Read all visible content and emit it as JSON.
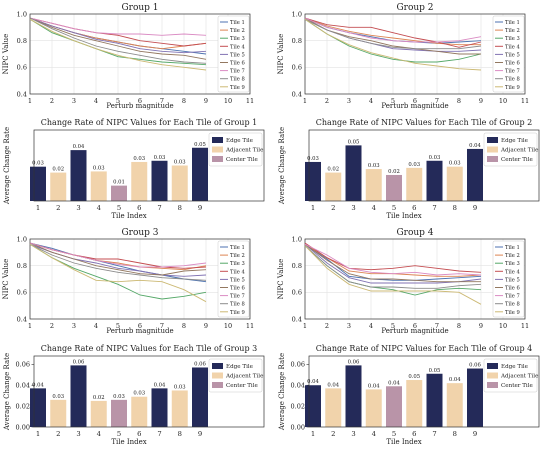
{
  "colors": {
    "tiles": [
      "#4c72b0",
      "#dd8452",
      "#55a868",
      "#c44e52",
      "#8172b3",
      "#937860",
      "#da8bc3",
      "#8c8c8c",
      "#ccb974"
    ],
    "edge": "#242a59",
    "adjacent": "#f1d3ab",
    "center": "#b994a8"
  },
  "chart_data": [
    {
      "type": "line",
      "title": "Group 1",
      "xlabel": "Perturb magnitude",
      "ylabel": "NIPC Value",
      "x": [
        1,
        2,
        3,
        4,
        5,
        6,
        7,
        8,
        9
      ],
      "xticks": [
        "1",
        "2",
        "3",
        "4",
        "5",
        "6",
        "7",
        "8",
        "9",
        "10",
        "11"
      ],
      "xlim": [
        1,
        11
      ],
      "ylim": [
        0.4,
        1.0
      ],
      "yticks": [
        "0.4",
        "0.6",
        "0.8",
        "1.0"
      ],
      "grid": true,
      "legend": "right",
      "series": [
        {
          "name": "Tile 1",
          "values": [
            0.97,
            0.91,
            0.86,
            0.82,
            0.79,
            0.76,
            0.74,
            0.72,
            0.7
          ]
        },
        {
          "name": "Tile 2",
          "values": [
            0.97,
            0.91,
            0.86,
            0.82,
            0.79,
            0.76,
            0.74,
            0.76,
            0.78
          ]
        },
        {
          "name": "Tile 3",
          "values": [
            0.96,
            0.86,
            0.8,
            0.74,
            0.68,
            0.66,
            0.64,
            0.63,
            0.62
          ]
        },
        {
          "name": "Tile 4",
          "values": [
            0.97,
            0.93,
            0.89,
            0.86,
            0.84,
            0.8,
            0.78,
            0.76,
            0.78
          ]
        },
        {
          "name": "Tile 5",
          "values": [
            0.97,
            0.91,
            0.86,
            0.81,
            0.78,
            0.74,
            0.72,
            0.71,
            0.72
          ]
        },
        {
          "name": "Tile 6",
          "values": [
            0.97,
            0.9,
            0.84,
            0.8,
            0.76,
            0.72,
            0.7,
            0.69,
            0.66
          ]
        },
        {
          "name": "Tile 7",
          "values": [
            0.97,
            0.93,
            0.89,
            0.86,
            0.85,
            0.85,
            0.84,
            0.85,
            0.84
          ]
        },
        {
          "name": "Tile 8",
          "values": [
            0.97,
            0.89,
            0.82,
            0.76,
            0.72,
            0.69,
            0.66,
            0.64,
            0.63
          ]
        },
        {
          "name": "Tile 9",
          "values": [
            0.96,
            0.87,
            0.8,
            0.74,
            0.69,
            0.65,
            0.62,
            0.6,
            0.58
          ]
        }
      ]
    },
    {
      "type": "line",
      "title": "Group 2",
      "xlabel": "Perturb magnitude",
      "ylabel": "NIPC Value",
      "x": [
        1,
        2,
        3,
        4,
        5,
        6,
        7,
        8,
        9
      ],
      "xticks": [
        "1",
        "2",
        "3",
        "4",
        "5",
        "6",
        "7",
        "8",
        "9",
        "10",
        "11"
      ],
      "xlim": [
        1,
        11
      ],
      "ylim": [
        0.4,
        1.0
      ],
      "yticks": [
        "0.4",
        "0.6",
        "0.8",
        "1.0"
      ],
      "grid": true,
      "legend": "right",
      "series": [
        {
          "name": "Tile 1",
          "values": [
            0.97,
            0.9,
            0.86,
            0.83,
            0.8,
            0.79,
            0.78,
            0.79,
            0.8
          ]
        },
        {
          "name": "Tile 2",
          "values": [
            0.97,
            0.91,
            0.87,
            0.84,
            0.82,
            0.8,
            0.78,
            0.77,
            0.77
          ]
        },
        {
          "name": "Tile 3",
          "values": [
            0.96,
            0.85,
            0.76,
            0.7,
            0.66,
            0.64,
            0.64,
            0.66,
            0.7
          ]
        },
        {
          "name": "Tile 4",
          "values": [
            0.97,
            0.92,
            0.9,
            0.9,
            0.86,
            0.82,
            0.79,
            0.75,
            0.79
          ]
        },
        {
          "name": "Tile 5",
          "values": [
            0.96,
            0.88,
            0.82,
            0.78,
            0.74,
            0.73,
            0.72,
            0.72,
            0.73
          ]
        },
        {
          "name": "Tile 6",
          "values": [
            0.97,
            0.88,
            0.83,
            0.8,
            0.76,
            0.74,
            0.72,
            0.7,
            0.7
          ]
        },
        {
          "name": "Tile 7",
          "values": [
            0.97,
            0.9,
            0.86,
            0.82,
            0.8,
            0.79,
            0.79,
            0.8,
            0.83
          ]
        },
        {
          "name": "Tile 8",
          "values": [
            0.96,
            0.88,
            0.82,
            0.78,
            0.75,
            0.74,
            0.74,
            0.74,
            0.76
          ]
        },
        {
          "name": "Tile 9",
          "values": [
            0.96,
            0.85,
            0.77,
            0.71,
            0.67,
            0.63,
            0.61,
            0.59,
            0.58
          ]
        }
      ]
    },
    {
      "type": "bar",
      "title": "Change Rate of NIPC Values for Each Tile of Group 1",
      "xlabel": "Tile Index",
      "ylabel": "Average Change Rate",
      "categories": [
        "1",
        "2",
        "3",
        "4",
        "5",
        "6",
        "7",
        "8",
        "9"
      ],
      "values": [
        0.03,
        0.02,
        0.04,
        0.03,
        0.01,
        0.03,
        0.03,
        0.03,
        0.05
      ],
      "bar_values": [
        0.029,
        0.024,
        0.043,
        0.025,
        0.013,
        0.033,
        0.034,
        0.03,
        0.045
      ],
      "roles": [
        "edge",
        "adjacent",
        "edge",
        "adjacent",
        "center",
        "adjacent",
        "edge",
        "adjacent",
        "edge"
      ],
      "ylim": [
        0,
        0.06
      ],
      "yticks": [],
      "legend": "top-right",
      "legend_labels": [
        "Edge Tile",
        "Adjacent Tile",
        "Center Tile"
      ]
    },
    {
      "type": "bar",
      "title": "Change Rate of NIPC Values for Each Tile of Group 2",
      "xlabel": "Tile Index",
      "ylabel": "Average Change Rate",
      "categories": [
        "1",
        "2",
        "3",
        "4",
        "5",
        "6",
        "7",
        "8",
        "9"
      ],
      "values": [
        0.03,
        0.02,
        0.05,
        0.03,
        0.02,
        0.03,
        0.03,
        0.03,
        0.04
      ],
      "bar_values": [
        0.033,
        0.024,
        0.047,
        0.027,
        0.022,
        0.028,
        0.034,
        0.029,
        0.044
      ],
      "roles": [
        "edge",
        "adjacent",
        "edge",
        "adjacent",
        "center",
        "adjacent",
        "edge",
        "adjacent",
        "edge"
      ],
      "ylim": [
        0,
        0.06
      ],
      "yticks": [],
      "legend": "top-right",
      "legend_labels": [
        "Edge Tile",
        "Adjacent Tile",
        "Center Tile"
      ]
    },
    {
      "type": "line",
      "title": "Group 3",
      "xlabel": "Perturb magnitude",
      "ylabel": "NIPC Value",
      "x": [
        1,
        2,
        3,
        4,
        5,
        6,
        7,
        8,
        9
      ],
      "xticks": [
        "1",
        "2",
        "3",
        "4",
        "5",
        "6",
        "7",
        "8",
        "9",
        "10",
        "11"
      ],
      "xlim": [
        1,
        11
      ],
      "ylim": [
        0.4,
        1.0
      ],
      "yticks": [
        "0.4",
        "0.6",
        "0.8",
        "1.0"
      ],
      "grid": true,
      "legend": "right",
      "series": [
        {
          "name": "Tile 1",
          "values": [
            0.97,
            0.93,
            0.88,
            0.84,
            0.8,
            0.76,
            0.73,
            0.7,
            0.68
          ]
        },
        {
          "name": "Tile 2",
          "values": [
            0.97,
            0.92,
            0.88,
            0.84,
            0.82,
            0.79,
            0.78,
            0.77,
            0.8
          ]
        },
        {
          "name": "Tile 3",
          "values": [
            0.96,
            0.86,
            0.78,
            0.72,
            0.66,
            0.58,
            0.55,
            0.57,
            0.6
          ]
        },
        {
          "name": "Tile 4",
          "values": [
            0.97,
            0.92,
            0.88,
            0.85,
            0.85,
            0.82,
            0.79,
            0.78,
            0.79
          ]
        },
        {
          "name": "Tile 5",
          "values": [
            0.96,
            0.9,
            0.85,
            0.82,
            0.78,
            0.76,
            0.73,
            0.72,
            0.73
          ]
        },
        {
          "name": "Tile 6",
          "values": [
            0.97,
            0.9,
            0.85,
            0.8,
            0.77,
            0.74,
            0.73,
            0.76,
            0.77
          ]
        },
        {
          "name": "Tile 7",
          "values": [
            0.97,
            0.92,
            0.88,
            0.84,
            0.81,
            0.79,
            0.79,
            0.8,
            0.82
          ]
        },
        {
          "name": "Tile 8",
          "values": [
            0.96,
            0.88,
            0.82,
            0.78,
            0.75,
            0.73,
            0.71,
            0.7,
            0.69
          ]
        },
        {
          "name": "Tile 9",
          "values": [
            0.96,
            0.86,
            0.77,
            0.69,
            0.68,
            0.69,
            0.68,
            0.62,
            0.53
          ]
        }
      ]
    },
    {
      "type": "line",
      "title": "Group 4",
      "xlabel": "Perturb magnitude",
      "ylabel": "NIPC Value",
      "x": [
        1,
        2,
        3,
        4,
        5,
        6,
        7,
        8,
        9
      ],
      "xticks": [
        "1",
        "2",
        "3",
        "4",
        "5",
        "6",
        "7",
        "8",
        "9",
        "10",
        "11"
      ],
      "xlim": [
        1,
        11
      ],
      "ylim": [
        0.4,
        1.0
      ],
      "yticks": [
        "0.4",
        "0.6",
        "0.8",
        "1.0"
      ],
      "grid": true,
      "legend": "right",
      "series": [
        {
          "name": "Tile 1",
          "values": [
            0.96,
            0.85,
            0.72,
            0.7,
            0.69,
            0.69,
            0.7,
            0.71,
            0.72
          ]
        },
        {
          "name": "Tile 2",
          "values": [
            0.96,
            0.86,
            0.76,
            0.74,
            0.74,
            0.73,
            0.72,
            0.72,
            0.73
          ]
        },
        {
          "name": "Tile 3",
          "values": [
            0.95,
            0.8,
            0.68,
            0.64,
            0.62,
            0.58,
            0.62,
            0.63,
            0.62
          ]
        },
        {
          "name": "Tile 4",
          "values": [
            0.97,
            0.86,
            0.78,
            0.77,
            0.78,
            0.8,
            0.78,
            0.76,
            0.75
          ]
        },
        {
          "name": "Tile 5",
          "values": [
            0.96,
            0.82,
            0.71,
            0.67,
            0.67,
            0.67,
            0.67,
            0.68,
            0.7
          ]
        },
        {
          "name": "Tile 6",
          "values": [
            0.96,
            0.84,
            0.74,
            0.7,
            0.7,
            0.69,
            0.68,
            0.68,
            0.68
          ]
        },
        {
          "name": "Tile 7",
          "values": [
            0.96,
            0.88,
            0.78,
            0.75,
            0.74,
            0.75,
            0.73,
            0.74,
            0.73
          ]
        },
        {
          "name": "Tile 8",
          "values": [
            0.95,
            0.8,
            0.68,
            0.64,
            0.64,
            0.63,
            0.63,
            0.65,
            0.66
          ]
        },
        {
          "name": "Tile 9",
          "values": [
            0.95,
            0.78,
            0.66,
            0.61,
            0.61,
            0.61,
            0.61,
            0.6,
            0.51
          ]
        }
      ]
    },
    {
      "type": "bar",
      "title": "Change Rate of NIPC Values for Each Tile of Group 3",
      "xlabel": "Tile Index",
      "ylabel": "Average Change Rate",
      "categories": [
        "1",
        "2",
        "3",
        "4",
        "5",
        "6",
        "7",
        "8",
        "9"
      ],
      "values": [
        0.04,
        0.03,
        0.06,
        0.02,
        0.03,
        0.03,
        0.04,
        0.03,
        0.06
      ],
      "bar_values": [
        0.037,
        0.026,
        0.059,
        0.025,
        0.026,
        0.029,
        0.037,
        0.035,
        0.057
      ],
      "roles": [
        "edge",
        "adjacent",
        "edge",
        "adjacent",
        "center",
        "adjacent",
        "edge",
        "adjacent",
        "edge"
      ],
      "ylim": [
        0,
        0.068
      ],
      "yticks": [
        "0.00",
        "0.02",
        "0.04",
        "0.06"
      ],
      "legend": "top-right",
      "legend_labels": [
        "Edge Tile",
        "Adjacent Tile",
        "Center Tile"
      ]
    },
    {
      "type": "bar",
      "title": "Change Rate of NIPC Values for Each Tile of Group 4",
      "xlabel": "Tile Index",
      "ylabel": "Average Change Rate",
      "categories": [
        "1",
        "2",
        "3",
        "4",
        "5",
        "6",
        "7",
        "8",
        "9"
      ],
      "values": [
        0.04,
        0.04,
        0.06,
        0.04,
        0.04,
        0.05,
        0.05,
        0.04,
        0.06
      ],
      "bar_values": [
        0.04,
        0.037,
        0.059,
        0.036,
        0.039,
        0.045,
        0.051,
        0.042,
        0.056
      ],
      "roles": [
        "edge",
        "adjacent",
        "edge",
        "adjacent",
        "center",
        "adjacent",
        "edge",
        "adjacent",
        "edge"
      ],
      "ylim": [
        0,
        0.068
      ],
      "yticks": [
        "0.00",
        "0.02",
        "0.04",
        "0.06"
      ],
      "legend": "top-right",
      "legend_labels": [
        "Edge Tile",
        "Adjacent Tile",
        "Center Tile"
      ]
    }
  ]
}
